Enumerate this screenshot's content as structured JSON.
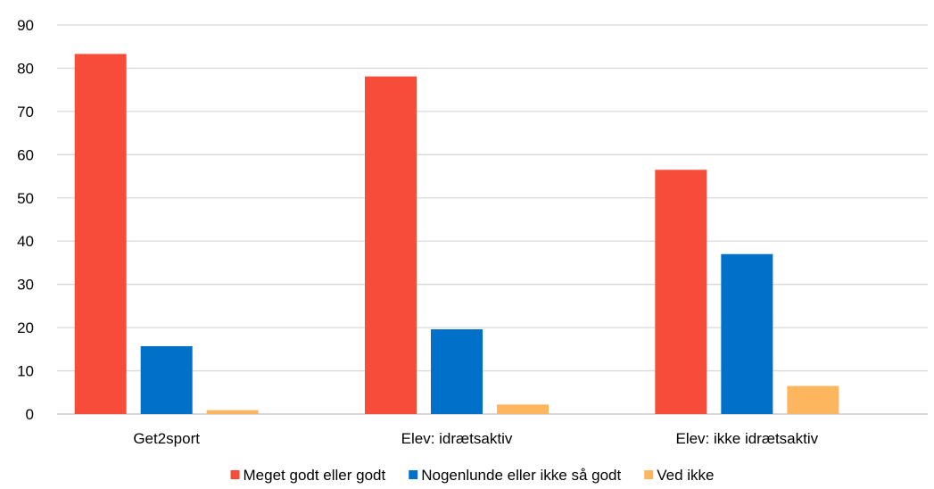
{
  "chart_data": {
    "type": "bar",
    "categories": [
      "Get2sport",
      "Elev: idrætsaktiv",
      "Elev: ikke idrætsaktiv"
    ],
    "series": [
      {
        "name": "Meget godt eller godt",
        "values": [
          83.3,
          78.1,
          56.5
        ],
        "color": "#F84C3A"
      },
      {
        "name": "Nogenlunde eller ikke så godt",
        "values": [
          15.7,
          19.6,
          37.0
        ],
        "color": "#0070C9"
      },
      {
        "name": "Ved ikke",
        "values": [
          0.9,
          2.2,
          6.5
        ],
        "color": "#FEB65E"
      }
    ],
    "title": "",
    "xlabel": "",
    "ylabel": "",
    "ylim": [
      0,
      90
    ],
    "yticks": [
      0,
      10,
      20,
      30,
      40,
      50,
      60,
      70,
      80,
      90
    ],
    "grid": true,
    "legend_position": "bottom"
  }
}
